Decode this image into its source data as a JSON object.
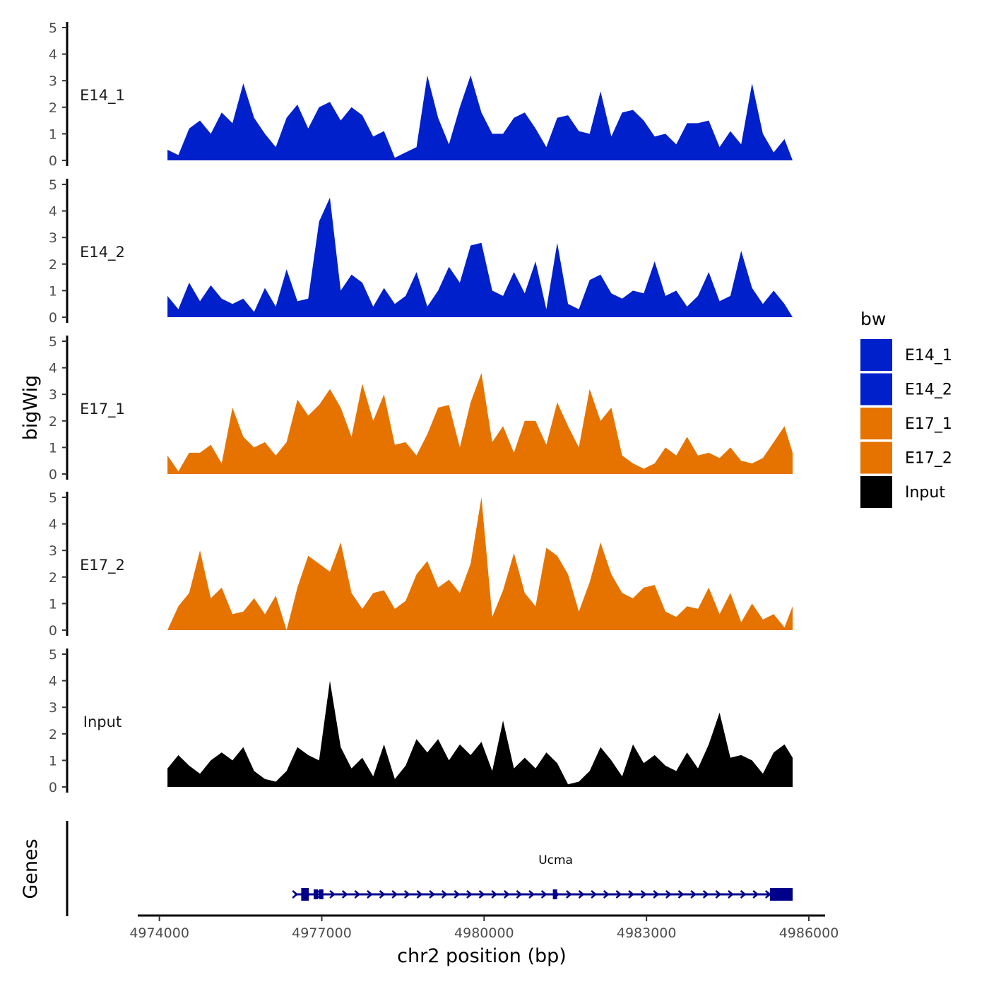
{
  "chart_data": {
    "type": "area",
    "title": "",
    "xlabel": "chr2 position (bp)",
    "ylabel": "bigWig",
    "genes_label": "Genes",
    "xlim": [
      4973600,
      4986300
    ],
    "ylim": [
      0,
      5
    ],
    "x_ticks": [
      4974000,
      4977000,
      4980000,
      4983000,
      4986000
    ],
    "x_tick_labels": [
      "4974000",
      "4977000",
      "4980000",
      "4983000",
      "4986000"
    ],
    "y_ticks": [
      0,
      1,
      2,
      3,
      4,
      5
    ],
    "y_tick_labels": [
      "0",
      "1",
      "2",
      "3",
      "4",
      "5"
    ],
    "legend": {
      "title": "bw",
      "position": "right",
      "entries": [
        {
          "label": "E14_1",
          "color": "#0020CC"
        },
        {
          "label": "E14_2",
          "color": "#0020CC"
        },
        {
          "label": "E17_1",
          "color": "#E67300"
        },
        {
          "label": "E17_2",
          "color": "#E67300"
        },
        {
          "label": "Input",
          "color": "#000000"
        }
      ]
    },
    "x": [
      4974150,
      4974350,
      4974550,
      4974750,
      4974950,
      4975150,
      4975350,
      4975550,
      4975750,
      4975950,
      4976150,
      4976350,
      4976550,
      4976750,
      4976950,
      4977150,
      4977350,
      4977550,
      4977750,
      4977950,
      4978150,
      4978350,
      4978550,
      4978750,
      4978950,
      4979150,
      4979350,
      4979550,
      4979750,
      4979950,
      4980150,
      4980350,
      4980550,
      4980750,
      4980950,
      4981150,
      4981350,
      4981550,
      4981750,
      4981950,
      4982150,
      4982350,
      4982550,
      4982750,
      4982950,
      4983150,
      4983350,
      4983550,
      4983750,
      4983950,
      4984150,
      4984350,
      4984550,
      4984750,
      4984950,
      4985150,
      4985350,
      4985550,
      4985700
    ],
    "series": [
      {
        "name": "E14_1",
        "color": "#0020CC",
        "values": [
          0.4,
          0.2,
          1.2,
          1.5,
          1.0,
          1.8,
          1.4,
          2.9,
          1.6,
          1.0,
          0.5,
          1.6,
          2.1,
          1.2,
          2.0,
          2.2,
          1.5,
          2.0,
          1.7,
          0.9,
          1.1,
          0.1,
          0.3,
          0.5,
          3.2,
          1.6,
          0.6,
          2.0,
          3.2,
          1.8,
          1.0,
          1.0,
          1.6,
          1.8,
          1.2,
          0.5,
          1.6,
          1.7,
          1.1,
          1.0,
          2.6,
          0.9,
          1.8,
          1.9,
          1.5,
          0.9,
          1.0,
          0.6,
          1.4,
          1.4,
          1.5,
          0.5,
          1.1,
          0.6,
          2.9,
          1.0,
          0.3,
          0.8,
          0.0
        ]
      },
      {
        "name": "E14_2",
        "color": "#0020CC",
        "values": [
          0.8,
          0.3,
          1.3,
          0.6,
          1.2,
          0.7,
          0.5,
          0.7,
          0.2,
          1.1,
          0.4,
          1.8,
          0.6,
          0.7,
          3.6,
          4.5,
          1.0,
          1.6,
          1.3,
          0.4,
          1.1,
          0.5,
          0.8,
          1.7,
          0.4,
          1.0,
          1.9,
          1.3,
          2.7,
          2.8,
          1.0,
          0.8,
          1.7,
          0.9,
          2.1,
          0.3,
          2.8,
          0.5,
          0.3,
          1.4,
          1.6,
          0.9,
          0.7,
          1.0,
          0.9,
          2.1,
          0.8,
          1.0,
          0.4,
          0.8,
          1.7,
          0.6,
          0.8,
          2.5,
          1.1,
          0.5,
          1.0,
          0.5,
          0.0
        ]
      },
      {
        "name": "E17_1",
        "color": "#E67300",
        "values": [
          0.7,
          0.1,
          0.8,
          0.8,
          1.1,
          0.4,
          2.5,
          1.4,
          1.0,
          1.2,
          0.7,
          1.2,
          2.8,
          2.2,
          2.6,
          3.2,
          2.5,
          1.4,
          3.4,
          2.0,
          3.0,
          1.1,
          1.2,
          0.7,
          1.5,
          2.5,
          2.6,
          1.0,
          2.7,
          3.8,
          1.2,
          1.8,
          0.8,
          2.0,
          2.0,
          1.1,
          2.7,
          1.8,
          1.0,
          3.2,
          2.0,
          2.5,
          0.7,
          0.4,
          0.2,
          0.4,
          1.0,
          0.7,
          1.4,
          0.7,
          0.8,
          0.6,
          1.0,
          0.5,
          0.4,
          0.6,
          1.2,
          1.8,
          0.8
        ]
      },
      {
        "name": "E17_2",
        "color": "#E67300",
        "values": [
          0.0,
          0.9,
          1.4,
          3.0,
          1.2,
          1.6,
          0.6,
          0.7,
          1.2,
          0.6,
          1.3,
          0.0,
          1.6,
          2.8,
          2.5,
          2.2,
          3.3,
          1.4,
          0.8,
          1.4,
          1.5,
          0.8,
          1.1,
          2.1,
          2.6,
          1.6,
          1.9,
          1.4,
          2.5,
          5.0,
          0.5,
          1.5,
          2.9,
          1.4,
          0.9,
          3.1,
          2.8,
          2.1,
          0.7,
          1.8,
          3.3,
          2.1,
          1.4,
          1.2,
          1.6,
          1.7,
          0.7,
          0.5,
          0.9,
          0.8,
          1.6,
          0.6,
          1.4,
          0.3,
          1.0,
          0.4,
          0.6,
          0.1,
          0.9
        ]
      },
      {
        "name": "Input",
        "color": "#000000",
        "values": [
          0.7,
          1.2,
          0.8,
          0.5,
          1.0,
          1.3,
          1.0,
          1.5,
          0.6,
          0.3,
          0.2,
          0.6,
          1.5,
          1.2,
          1.0,
          4.0,
          1.5,
          0.7,
          1.1,
          0.4,
          1.6,
          0.3,
          0.8,
          1.8,
          1.3,
          1.8,
          1.0,
          1.6,
          1.2,
          1.7,
          0.6,
          2.5,
          0.7,
          1.1,
          0.7,
          1.3,
          0.9,
          0.1,
          0.2,
          0.6,
          1.5,
          1.0,
          0.4,
          1.6,
          0.9,
          1.2,
          0.8,
          0.6,
          1.3,
          0.7,
          1.6,
          2.8,
          1.1,
          1.2,
          1.0,
          0.5,
          1.3,
          1.6,
          1.1
        ]
      }
    ],
    "gene_track": {
      "name": "Ucma",
      "color": "#00008B",
      "start": 4976500,
      "end": 4985700,
      "strand": "+",
      "exons": [
        {
          "start": 4976620,
          "end": 4976760
        },
        {
          "start": 4976850,
          "end": 4976880
        },
        {
          "start": 4976950,
          "end": 4977030
        },
        {
          "start": 4981270,
          "end": 4981340
        },
        {
          "start": 4985280,
          "end": 4985700
        }
      ]
    }
  }
}
